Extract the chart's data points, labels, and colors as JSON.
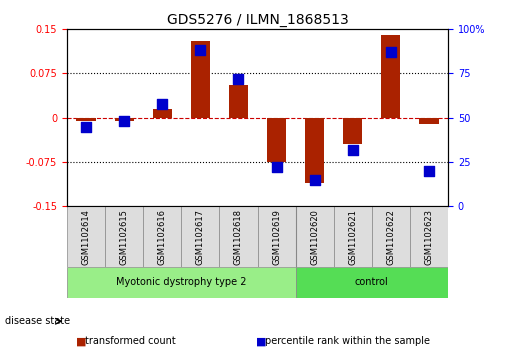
{
  "title": "GDS5276 / ILMN_1868513",
  "samples": [
    "GSM1102614",
    "GSM1102615",
    "GSM1102616",
    "GSM1102617",
    "GSM1102618",
    "GSM1102619",
    "GSM1102620",
    "GSM1102621",
    "GSM1102622",
    "GSM1102623"
  ],
  "bar_values": [
    -0.005,
    -0.005,
    0.015,
    0.13,
    0.055,
    -0.075,
    -0.11,
    -0.045,
    0.14,
    -0.01
  ],
  "dot_values": [
    45,
    48,
    58,
    88,
    72,
    22,
    15,
    32,
    87,
    20
  ],
  "ylim_left": [
    -0.15,
    0.15
  ],
  "ylim_right": [
    0,
    100
  ],
  "yticks_left": [
    -0.15,
    -0.075,
    0,
    0.075,
    0.15
  ],
  "yticks_right": [
    0,
    25,
    50,
    75,
    100
  ],
  "ytick_labels_left": [
    "-0.15",
    "-0.075",
    "0",
    "0.075",
    "0.15"
  ],
  "ytick_labels_right": [
    "0",
    "25",
    "50",
    "75",
    "100%"
  ],
  "hlines": [
    0.075,
    0,
    -0.075
  ],
  "bar_color": "#aa2200",
  "dot_color": "#0000cc",
  "zero_line_color": "#cc0000",
  "grid_line_color": "#000000",
  "disease_groups": [
    {
      "label": "Myotonic dystrophy type 2",
      "start": 0,
      "end": 6,
      "color": "#99ee88"
    },
    {
      "label": "control",
      "start": 6,
      "end": 10,
      "color": "#55dd55"
    }
  ],
  "disease_state_label": "disease state",
  "legend_items": [
    {
      "label": "transformed count",
      "color": "#aa2200",
      "marker": "s"
    },
    {
      "label": "percentile rank within the sample",
      "color": "#0000cc",
      "marker": "s"
    }
  ],
  "bar_width": 0.5,
  "dot_size": 50,
  "background_color": "#ffffff",
  "plot_bg_color": "#ffffff",
  "spine_color": "#000000"
}
